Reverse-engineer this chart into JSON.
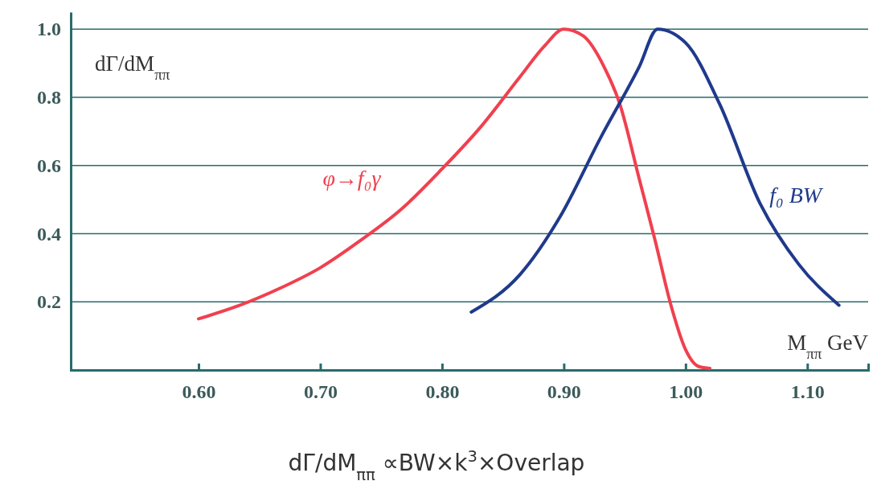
{
  "chart_data": {
    "type": "line",
    "xlabel": "M$_{ππ}$ GeV",
    "ylabel": "dΓ/dM$_{ππ}$",
    "annotations": [
      "dΓ/dM$_{ππ}$ ∝BW×k$^{3}$×Overlap"
    ],
    "xlim": [
      0.495,
      1.15
    ],
    "ylim": [
      0,
      1.05
    ],
    "xticks": [
      {
        "value": 0.6,
        "label": "0.60"
      },
      {
        "value": 0.7,
        "label": "0.70"
      },
      {
        "value": 0.8,
        "label": "0.80"
      },
      {
        "value": 0.9,
        "label": "0.90"
      },
      {
        "value": 1.0,
        "label": "1.00"
      },
      {
        "value": 1.1,
        "label": "1.10"
      }
    ],
    "yticks": [
      {
        "value": 0.2,
        "label": "0.2"
      },
      {
        "value": 0.4,
        "label": "0.4"
      },
      {
        "value": 0.6,
        "label": "0.6"
      },
      {
        "value": 0.8,
        "label": "0.8"
      },
      {
        "value": 1.0,
        "label": "1.0"
      }
    ],
    "grid": "y",
    "series": [
      {
        "name": "φ→f₀γ",
        "color": "#f0404f",
        "x": [
          0.6,
          0.634,
          0.667,
          0.7,
          0.733,
          0.766,
          0.8,
          0.831,
          0.864,
          0.884,
          0.9,
          0.916,
          0.933,
          0.946,
          0.962,
          0.975,
          0.988,
          1.0,
          1.011,
          1.02
        ],
        "values": [
          0.15,
          0.19,
          0.24,
          0.3,
          0.38,
          0.47,
          0.59,
          0.71,
          0.86,
          0.95,
          1.0,
          0.98,
          0.89,
          0.78,
          0.56,
          0.38,
          0.19,
          0.06,
          0.01,
          0.005
        ]
      },
      {
        "name": "f₀ BW",
        "color": "#1f3a8c",
        "x": [
          0.824,
          0.864,
          0.897,
          0.93,
          0.962,
          0.977,
          1.0,
          1.028,
          1.061,
          1.093,
          1.126
        ],
        "values": [
          0.17,
          0.28,
          0.45,
          0.68,
          0.89,
          1.0,
          0.96,
          0.78,
          0.49,
          0.31,
          0.19
        ]
      }
    ]
  }
}
